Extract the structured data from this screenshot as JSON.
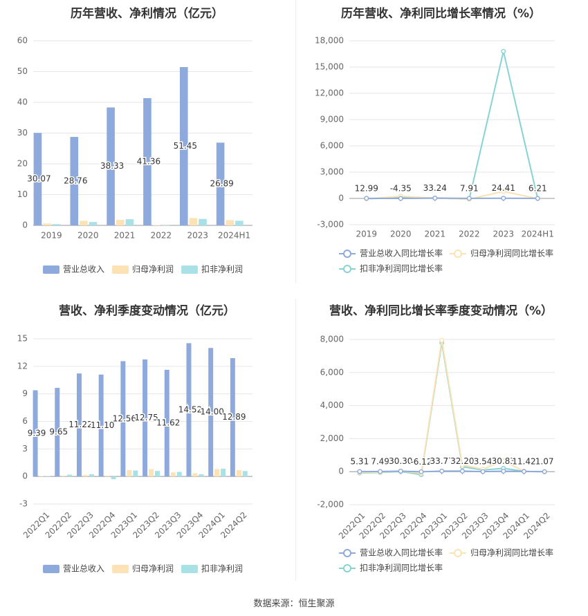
{
  "footer": {
    "source": "数据来源：恒生聚源"
  },
  "colors": {
    "revenue": "#8eaadc",
    "parent_profit": "#fce2b4",
    "nonrecurring_profit": "#a9e2e6",
    "line_revenue": "#8eaadc",
    "line_parent": "#fbe2b3",
    "line_nonrecurring": "#87d3d2",
    "grid": "#e6e6e6",
    "axis_text": "#666666",
    "title": "#333333"
  },
  "legend_icons": [
    "bar-swatch",
    "line-circle-marker"
  ],
  "chart_data": [
    {
      "id": "annual-amount",
      "type": "bar",
      "title": "历年营收、净利情况（亿元）",
      "categories": [
        "2019",
        "2020",
        "2021",
        "2022",
        "2023",
        "2024H1"
      ],
      "ylim": [
        0,
        60
      ],
      "yticks": [
        0,
        10,
        20,
        30,
        40,
        50,
        60
      ],
      "grid": true,
      "legend_position": "bottom",
      "series": [
        {
          "name": "营业总收入",
          "values": [
            30.07,
            28.76,
            38.33,
            41.36,
            51.45,
            26.89
          ],
          "labels": [
            "30.07",
            "28.76",
            "38.33",
            "41.36",
            "51.45",
            "26.89"
          ]
        },
        {
          "name": "归母净利润",
          "values": [
            0.6,
            1.5,
            1.8,
            0.1,
            2.4,
            1.7
          ]
        },
        {
          "name": "扣非净利润",
          "values": [
            0.4,
            1.1,
            2.0,
            0.05,
            2.1,
            1.5
          ]
        }
      ]
    },
    {
      "id": "annual-growth",
      "type": "line",
      "title": "历年营收、净利同比增长率情况（%）",
      "categories": [
        "2019",
        "2020",
        "2021",
        "2022",
        "2023",
        "2024H1"
      ],
      "ylim": [
        -3000,
        18000
      ],
      "yticks": [
        -3000,
        0,
        3000,
        6000,
        9000,
        12000,
        15000,
        18000
      ],
      "ytick_labels": [
        "-3,000",
        "0",
        "3,000",
        "6,000",
        "9,000",
        "12,000",
        "15,000",
        "18,000"
      ],
      "grid": true,
      "legend_position": "bottom",
      "series": [
        {
          "name": "营业总收入同比增长率",
          "values": [
            12.99,
            -4.35,
            33.24,
            7.91,
            24.41,
            6.21
          ],
          "labels": [
            "12.99",
            "-4.35",
            "33.24",
            "7.91",
            "24.41",
            "6.21"
          ]
        },
        {
          "name": "归母净利润同比增长率",
          "values": [
            -60,
            250,
            30,
            -90,
            800,
            -30
          ]
        },
        {
          "name": "扣非净利润同比增长率",
          "values": [
            -60,
            150,
            50,
            -90,
            16800,
            -20
          ]
        }
      ]
    },
    {
      "id": "quarterly-amount",
      "type": "bar",
      "title": "营收、净利季度变动情况（亿元）",
      "categories": [
        "2022Q1",
        "2022Q2",
        "2022Q3",
        "2022Q4",
        "2023Q1",
        "2023Q2",
        "2023Q3",
        "2023Q4",
        "2024Q1",
        "2024Q2"
      ],
      "ylim": [
        -3,
        15
      ],
      "yticks": [
        -3,
        0,
        3,
        6,
        9,
        12,
        15
      ],
      "grid": true,
      "legend_position": "bottom",
      "series": [
        {
          "name": "营业总收入",
          "values": [
            9.39,
            9.65,
            11.22,
            11.1,
            12.56,
            12.75,
            11.62,
            14.52,
            14.0,
            12.89
          ],
          "labels": [
            "9.39",
            "9.65",
            "11.22",
            "11.10",
            "12.56",
            "12.75",
            "11.62",
            "14.52",
            "14.00",
            "12.89"
          ]
        },
        {
          "name": "归母净利润",
          "values": [
            0.05,
            0.1,
            0.15,
            0.1,
            0.7,
            0.8,
            0.45,
            0.35,
            0.8,
            0.7
          ]
        },
        {
          "name": "扣非净利润",
          "values": [
            0.05,
            0.2,
            0.25,
            -0.3,
            0.65,
            0.6,
            0.5,
            0.25,
            0.85,
            0.6
          ]
        }
      ]
    },
    {
      "id": "quarterly-growth",
      "type": "line",
      "title": "营收、净利同比增长率季度变动情况（%）",
      "categories": [
        "2022Q1",
        "2022Q2",
        "2022Q3",
        "2022Q4",
        "2023Q1",
        "2023Q2",
        "2023Q3",
        "2023Q4",
        "2024Q1",
        "2024Q2"
      ],
      "ylim": [
        -2000,
        8000
      ],
      "yticks": [
        -2000,
        0,
        2000,
        4000,
        6000,
        8000
      ],
      "ytick_labels": [
        "-2,000",
        "0",
        "2,000",
        "4,000",
        "6,000",
        "8,000"
      ],
      "grid": true,
      "legend_position": "bottom",
      "series": [
        {
          "name": "营业总收入同比增长率",
          "values": [
            5.31,
            7.49,
            30.3,
            -6.12,
            33.77,
            32.2,
            3.54,
            30.83,
            11.42,
            1.07
          ],
          "labels": [
            "5.31",
            "7.49",
            "30.30",
            "-6.12",
            "33.77",
            "32.20",
            "3.54",
            "30.83",
            "11.42",
            "1.07"
          ]
        },
        {
          "name": "归母净利润同比增长率",
          "values": [
            -50,
            -30,
            40,
            -100,
            7950,
            400,
            150,
            650,
            30,
            -20
          ]
        },
        {
          "name": "扣非净利润同比增长率",
          "values": [
            -80,
            -50,
            10,
            -180,
            7800,
            300,
            100,
            200,
            20,
            -10
          ]
        }
      ]
    }
  ]
}
